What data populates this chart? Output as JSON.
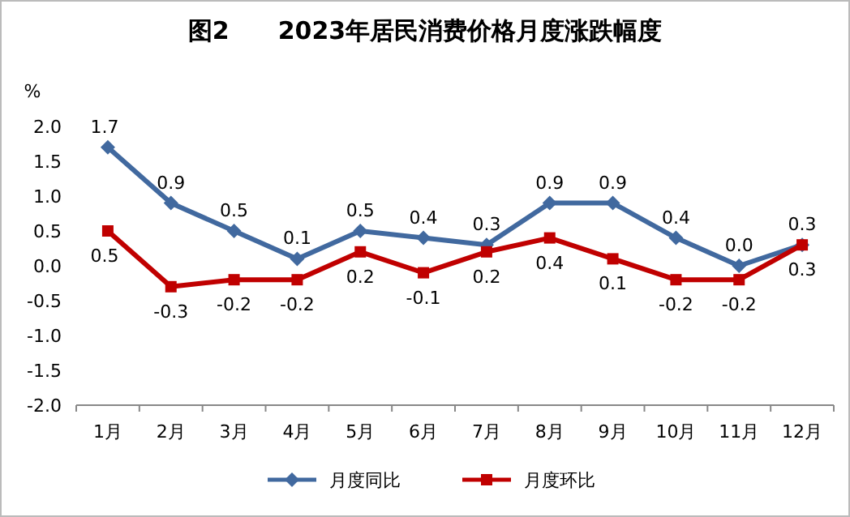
{
  "chart_data": {
    "type": "line",
    "title": "图2　　2023年居民消费价格月度涨跌幅度",
    "ylabel": "%",
    "categories": [
      "1月",
      "2月",
      "3月",
      "4月",
      "5月",
      "6月",
      "7月",
      "8月",
      "9月",
      "10月",
      "11月",
      "12月"
    ],
    "series": [
      {
        "name": "月度同比",
        "color": "#41699f",
        "marker": "diamond",
        "values": [
          1.7,
          0.9,
          0.5,
          0.1,
          0.5,
          0.4,
          0.3,
          0.9,
          0.9,
          0.4,
          0.0,
          0.3
        ],
        "value_labels": [
          "1.7",
          "0.9",
          "0.5",
          "0.1",
          "0.5",
          "0.4",
          "0.3",
          "0.9",
          "0.9",
          "0.4",
          "0.0",
          "0.3"
        ]
      },
      {
        "name": "月度环比",
        "color": "#c00000",
        "marker": "square",
        "values": [
          0.5,
          -0.3,
          -0.2,
          -0.2,
          0.2,
          -0.1,
          0.2,
          0.4,
          0.1,
          -0.2,
          -0.2,
          0.3
        ],
        "value_labels": [
          "0.5",
          "-0.3",
          "-0.2",
          "-0.2",
          "0.2",
          "-0.1",
          "0.2",
          "0.4",
          "0.1",
          "-0.2",
          "-0.2",
          "0.3"
        ]
      }
    ],
    "ylim": [
      -2,
      2
    ],
    "yticks": [
      {
        "value": -2,
        "label": "-2.0"
      },
      {
        "value": -1.5,
        "label": "-1.5"
      },
      {
        "value": -1,
        "label": "-1.0"
      },
      {
        "value": -0.5,
        "label": "-0.5"
      },
      {
        "value": 0,
        "label": "0.0"
      },
      {
        "value": 0.5,
        "label": "0.5"
      },
      {
        "value": 1,
        "label": "1.0"
      },
      {
        "value": 1.5,
        "label": "1.5"
      },
      {
        "value": 2,
        "label": "2.0"
      }
    ],
    "legend": "bottom",
    "grid": false,
    "line_style": "solid"
  }
}
